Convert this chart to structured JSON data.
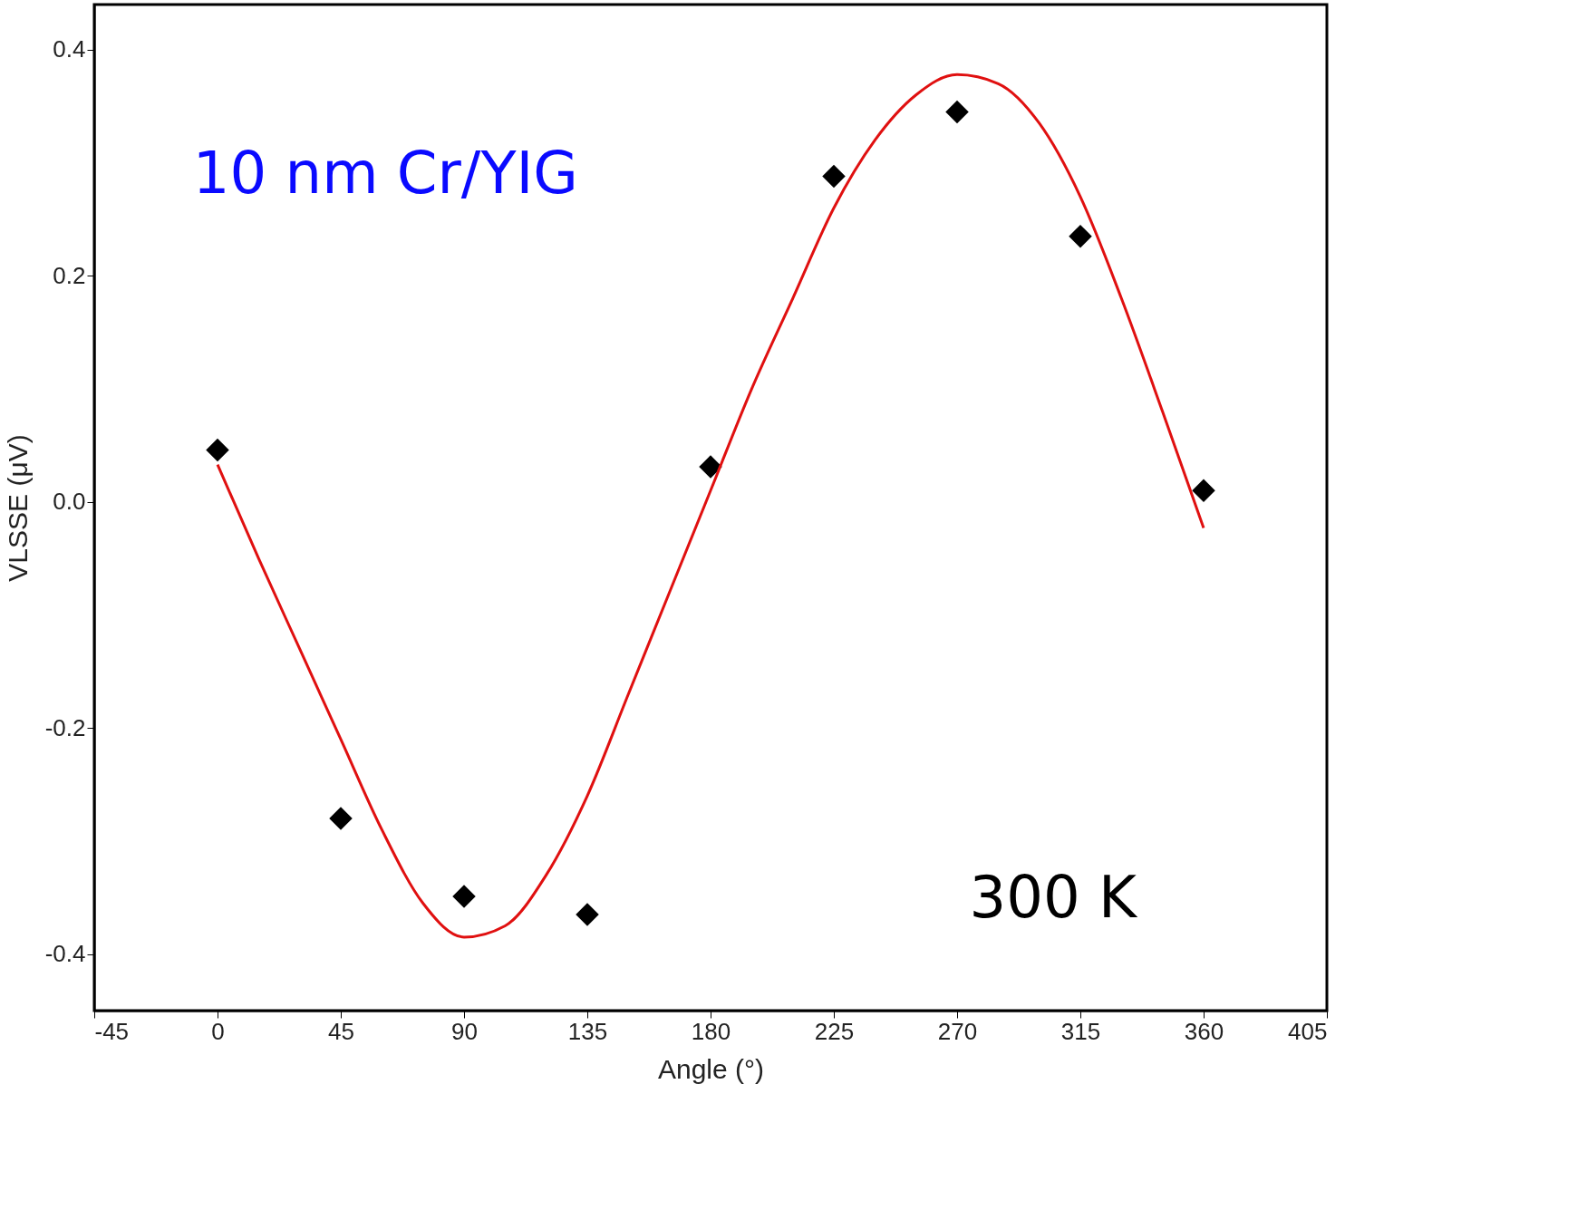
{
  "chart_data": {
    "type": "scatter",
    "xlabel": "Angle (°)",
    "ylabel": "VLSSE (μV)",
    "xlim": [
      -45,
      405
    ],
    "xticks": [
      -45,
      0,
      45,
      90,
      135,
      180,
      225,
      270,
      315,
      360,
      405
    ],
    "ylim": [
      -0.45,
      0.44
    ],
    "yticks": [
      {
        "value": -0.4,
        "label": "-0.4"
      },
      {
        "value": -0.2,
        "label": "-0.2"
      },
      {
        "value": 0,
        "label": "0.0"
      },
      {
        "value": 0.2,
        "label": "0.2"
      },
      {
        "value": 0.4,
        "label": "0.4"
      }
    ],
    "grid": false,
    "annotations": [
      "10 nm Cr/YIG",
      "300 K"
    ],
    "series": [
      {
        "marker": "diamond",
        "color": "#000000",
        "x": [
          0,
          45,
          90,
          135,
          180,
          225,
          270,
          315,
          360
        ],
        "values": [
          0.046,
          -0.28,
          -0.349,
          -0.365,
          0.031,
          0.288,
          0.345,
          0.235,
          0.01
        ]
      },
      {
        "type": "line",
        "marker": "none",
        "line_style": "solid",
        "color": "#e01010",
        "x": [
          0,
          15,
          30,
          45,
          60,
          75,
          90,
          105,
          120,
          135,
          150,
          165,
          180,
          195,
          210,
          225,
          240,
          255,
          270,
          285,
          300,
          315,
          330,
          345,
          360
        ],
        "values": [
          0.033,
          -0.05,
          -0.13,
          -0.21,
          -0.29,
          -0.355,
          -0.385,
          -0.375,
          -0.33,
          -0.26,
          -0.17,
          -0.08,
          0.01,
          0.1,
          0.18,
          0.26,
          0.32,
          0.36,
          0.378,
          0.37,
          0.335,
          0.27,
          0.18,
          0.08,
          -0.023
        ]
      }
    ]
  }
}
